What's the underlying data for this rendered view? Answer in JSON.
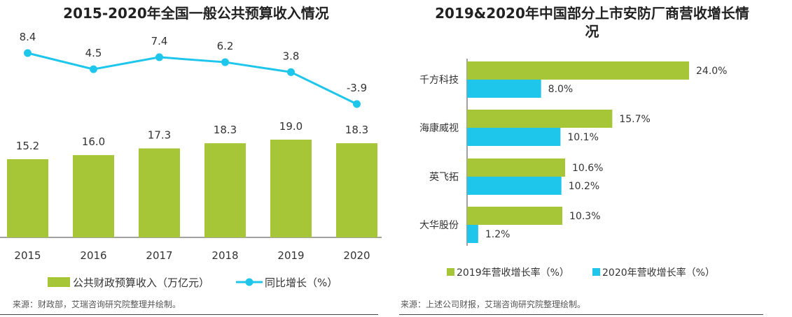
{
  "colors": {
    "green": "#a6c637",
    "cyan": "#1ec6ec",
    "text": "#333333",
    "axis": "#444444"
  },
  "left": {
    "title": "2015-2020年全国一般公共预算收入情况",
    "source": "来源：财政部，艾瑞咨询研究院整理并绘制。",
    "legend": {
      "bar": "公共财政预算收入（万亿元）",
      "line": "同比增长（%）"
    }
  },
  "right": {
    "title_line1": "2019&2020年中国部分上市安防厂商营收增长情",
    "title_line2": "况",
    "source": "来源：上述公司财报，艾瑞咨询研究院整理绘制。",
    "legend": {
      "s1": "2019年营收增长率（%）",
      "s2": "2020年营收增长率（%）"
    }
  },
  "chart_data": [
    {
      "type": "bar",
      "title": "2015-2020年全国一般公共预算收入情况",
      "categories": [
        "2015",
        "2016",
        "2017",
        "2018",
        "2019",
        "2020"
      ],
      "series": [
        {
          "name": "公共财政预算收入（万亿元）",
          "type": "bar",
          "values": [
            15.2,
            16.0,
            17.3,
            18.3,
            19.0,
            18.3
          ],
          "labels": [
            "15.2",
            "16.0",
            "17.3",
            "18.3",
            "19.0",
            "18.3"
          ]
        },
        {
          "name": "同比增长（%）",
          "type": "line",
          "values": [
            8.4,
            4.5,
            7.4,
            6.2,
            3.8,
            -3.9
          ],
          "labels": [
            "8.4",
            "4.5",
            "7.4",
            "6.2",
            "3.8",
            "-3.9"
          ]
        }
      ],
      "legend": "bottom"
    },
    {
      "type": "bar",
      "orientation": "horizontal",
      "title": "2019&2020年中国部分上市安防厂商营收增长情况",
      "categories": [
        "千方科技",
        "海康威视",
        "英飞拓",
        "大华股份"
      ],
      "series": [
        {
          "name": "2019年营收增长率（%）",
          "values": [
            24.0,
            15.7,
            10.6,
            10.3
          ],
          "labels": [
            "24.0%",
            "15.7%",
            "10.6%",
            "10.3%"
          ]
        },
        {
          "name": "2020年营收增长率（%）",
          "values": [
            8.0,
            10.1,
            10.2,
            1.2
          ],
          "labels": [
            "8.0%",
            "10.1%",
            "10.2%",
            "1.2%"
          ]
        }
      ],
      "legend": "bottom"
    }
  ]
}
